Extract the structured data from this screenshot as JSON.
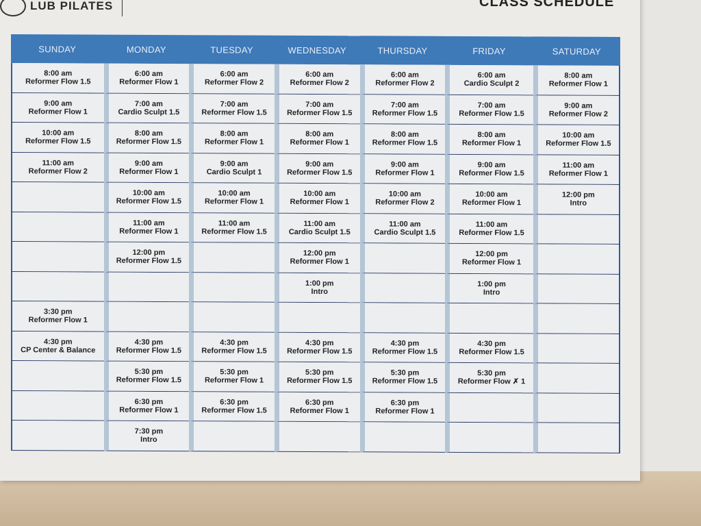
{
  "header": {
    "logo_text": "LUB PILATES",
    "title": "CLASS SCHEDULE"
  },
  "days": [
    "SUNDAY",
    "MONDAY",
    "TUESDAY",
    "WEDNESDAY",
    "THURSDAY",
    "FRIDAY",
    "SATURDAY"
  ],
  "colors": {
    "header_blue": "#3e79b8",
    "column_stripe": "#b4c5d6",
    "border_navy": "#2b3a66"
  },
  "rows": [
    [
      [
        "8:00 am",
        "Reformer Flow 1.5"
      ],
      [
        "6:00 am",
        "Reformer Flow 1"
      ],
      [
        "6:00 am",
        "Reformer Flow 2"
      ],
      [
        "6:00 am",
        "Reformer Flow 2"
      ],
      [
        "6:00 am",
        "Reformer Flow 2"
      ],
      [
        "6:00 am",
        "Cardio Sculpt 2"
      ],
      [
        "8:00 am",
        "Reformer Flow 1"
      ]
    ],
    [
      [
        "9:00 am",
        "Reformer Flow 1"
      ],
      [
        "7:00 am",
        "Cardio Sculpt 1.5"
      ],
      [
        "7:00 am",
        "Reformer Flow 1.5"
      ],
      [
        "7:00 am",
        "Reformer Flow 1.5"
      ],
      [
        "7:00 am",
        "Reformer Flow 1.5"
      ],
      [
        "7:00 am",
        "Reformer Flow 1.5"
      ],
      [
        "9:00 am",
        "Reformer Flow 2"
      ]
    ],
    [
      [
        "10:00 am",
        "Reformer Flow 1.5"
      ],
      [
        "8:00 am",
        "Reformer Flow 1.5"
      ],
      [
        "8:00 am",
        "Reformer Flow 1"
      ],
      [
        "8:00 am",
        "Reformer Flow 1"
      ],
      [
        "8:00 am",
        "Reformer Flow 1.5"
      ],
      [
        "8:00 am",
        "Reformer Flow 1"
      ],
      [
        "10:00 am",
        "Reformer Flow 1.5"
      ]
    ],
    [
      [
        "11:00 am",
        "Reformer Flow 2"
      ],
      [
        "9:00 am",
        "Reformer Flow 1"
      ],
      [
        "9:00 am",
        "Cardio Sculpt 1"
      ],
      [
        "9:00 am",
        "Reformer Flow 1.5"
      ],
      [
        "9:00 am",
        "Reformer Flow 1"
      ],
      [
        "9:00 am",
        "Reformer Flow 1.5"
      ],
      [
        "11:00 am",
        "Reformer Flow 1"
      ]
    ],
    [
      [
        "",
        ""
      ],
      [
        "10:00 am",
        "Reformer Flow 1.5"
      ],
      [
        "10:00 am",
        "Reformer Flow 1"
      ],
      [
        "10:00 am",
        "Reformer Flow 1"
      ],
      [
        "10:00 am",
        "Reformer Flow 2"
      ],
      [
        "10:00 am",
        "Reformer Flow 1"
      ],
      [
        "12:00 pm",
        "Intro"
      ]
    ],
    [
      [
        "",
        ""
      ],
      [
        "11:00 am",
        "Reformer Flow 1"
      ],
      [
        "11:00 am",
        "Reformer Flow 1.5"
      ],
      [
        "11:00 am",
        "Cardio Sculpt 1.5"
      ],
      [
        "11:00 am",
        "Cardio Sculpt 1.5"
      ],
      [
        "11:00 am",
        "Reformer Flow 1.5"
      ],
      [
        "",
        ""
      ]
    ],
    [
      [
        "",
        ""
      ],
      [
        "12:00 pm",
        "Reformer Flow 1.5"
      ],
      [
        "",
        ""
      ],
      [
        "12:00 pm",
        "Reformer Flow 1"
      ],
      [
        "",
        ""
      ],
      [
        "12:00 pm",
        "Reformer Flow 1"
      ],
      [
        "",
        ""
      ]
    ],
    [
      [
        "",
        ""
      ],
      [
        "",
        ""
      ],
      [
        "",
        ""
      ],
      [
        "1:00 pm",
        "Intro"
      ],
      [
        "",
        ""
      ],
      [
        "1:00 pm",
        "Intro"
      ],
      [
        "",
        ""
      ]
    ],
    [
      [
        "3:30 pm",
        "Reformer Flow 1"
      ],
      [
        "",
        ""
      ],
      [
        "",
        ""
      ],
      [
        "",
        ""
      ],
      [
        "",
        ""
      ],
      [
        "",
        ""
      ],
      [
        "",
        ""
      ]
    ],
    [
      [
        "4:30 pm",
        "CP Center & Balance"
      ],
      [
        "4:30 pm",
        "Reformer Flow 1.5"
      ],
      [
        "4:30 pm",
        "Reformer Flow 1.5"
      ],
      [
        "4:30 pm",
        "Reformer Flow 1.5"
      ],
      [
        "4:30 pm",
        "Reformer Flow 1.5"
      ],
      [
        "4:30 pm",
        "Reformer Flow 1.5"
      ],
      [
        "",
        ""
      ]
    ],
    [
      [
        "",
        ""
      ],
      [
        "5:30 pm",
        "Reformer Flow 1.5"
      ],
      [
        "5:30 pm",
        "Reformer Flow 1"
      ],
      [
        "5:30 pm",
        "Reformer Flow 1.5"
      ],
      [
        "5:30 pm",
        "Reformer Flow 1.5"
      ],
      [
        "5:30 pm",
        "Reformer Flow ✗ 1"
      ],
      [
        "",
        ""
      ]
    ],
    [
      [
        "",
        ""
      ],
      [
        "6:30 pm",
        "Reformer Flow 1"
      ],
      [
        "6:30 pm",
        "Reformer Flow 1.5"
      ],
      [
        "6:30 pm",
        "Reformer Flow 1"
      ],
      [
        "6:30 pm",
        "Reformer Flow 1"
      ],
      [
        "",
        ""
      ],
      [
        "",
        ""
      ]
    ],
    [
      [
        "",
        ""
      ],
      [
        "7:30 pm",
        "Intro"
      ],
      [
        "",
        ""
      ],
      [
        "",
        ""
      ],
      [
        "",
        ""
      ],
      [
        "",
        ""
      ],
      [
        "",
        ""
      ]
    ]
  ]
}
